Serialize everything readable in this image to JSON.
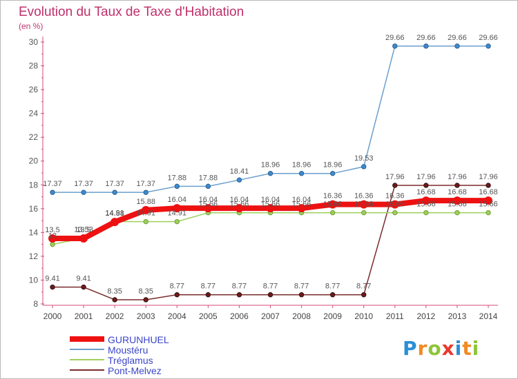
{
  "title": "Evolution du Taux de Taxe d'Habitation",
  "subtitle": "(en %)",
  "logo": {
    "text": "Proxiti",
    "colors": [
      "#2a8fd6",
      "#f08a24",
      "#8fc43a",
      "#e8382e",
      "#2a8fd6",
      "#f08a24",
      "#8fc43a"
    ]
  },
  "chart_data": {
    "type": "line",
    "title": "Evolution du Taux de Taxe d'Habitation",
    "ylabel": "(en %)",
    "xlabel": "",
    "x": [
      "2000",
      "2001",
      "2002",
      "2003",
      "2004",
      "2005",
      "2006",
      "2007",
      "2008",
      "2009",
      "2010",
      "2011",
      "2012",
      "2013",
      "2014"
    ],
    "ylim": [
      8,
      30
    ],
    "yticks": [
      "8",
      "10",
      "12",
      "14",
      "16",
      "18",
      "20",
      "22",
      "24",
      "26",
      "28",
      "30"
    ],
    "grid": false,
    "legend_position": "bottom-left",
    "series": [
      {
        "name": "GURUNHUEL",
        "color": "#ee1111",
        "values": [
          13.5,
          13.5,
          14.88,
          15.88,
          16.04,
          16.04,
          16.04,
          16.04,
          16.04,
          16.36,
          16.36,
          16.36,
          16.68,
          16.68,
          16.68
        ]
      },
      {
        "name": "Moustéru",
        "color": "#6a9fce",
        "values": [
          17.37,
          17.37,
          17.37,
          17.37,
          17.88,
          17.88,
          18.41,
          18.96,
          18.96,
          18.96,
          19.53,
          29.66,
          29.66,
          29.66,
          29.66
        ]
      },
      {
        "name": "Tréglamus",
        "color": "#9ed05a",
        "values": [
          13,
          13.53,
          14.91,
          14.91,
          14.91,
          15.66,
          15.66,
          15.66,
          15.66,
          15.66,
          15.66,
          15.66,
          15.66,
          15.66,
          15.66
        ]
      },
      {
        "name": "Pont-Melvez",
        "color": "#7a2a2a",
        "values": [
          9.41,
          9.41,
          8.35,
          8.35,
          8.77,
          8.77,
          8.77,
          8.77,
          8.77,
          8.77,
          8.77,
          17.96,
          17.96,
          17.96,
          17.96
        ]
      }
    ],
    "data_labels": [
      [
        "13.5",
        "13.5",
        "14.88",
        "15.88",
        "16.04",
        "16.04",
        "16.04",
        "16.04",
        "16.04",
        "16.36",
        "16.36",
        "16.36",
        "16.68",
        "16.68",
        "16.68"
      ],
      [
        "17.37",
        "17.37",
        "17.37",
        "17.37",
        "17.88",
        "17.88",
        "18.41",
        "18.96",
        "18.96",
        "18.96",
        "19.53",
        "29.66",
        "29.66",
        "29.66",
        "29.66"
      ],
      [
        "13",
        "13.53",
        "14.91",
        "14.91",
        "14.91",
        "15.66",
        "15.66",
        "15.66",
        "15.66",
        "15.66",
        "15.66",
        "15.66",
        "15.66",
        "15.66",
        "15.66"
      ],
      [
        "9.41",
        "9.41",
        "8.35",
        "8.35",
        "8.77",
        "8.77",
        "8.77",
        "8.77",
        "8.77",
        "8.77",
        "8.77",
        "17.96",
        "17.96",
        "17.96",
        "17.96"
      ]
    ]
  }
}
